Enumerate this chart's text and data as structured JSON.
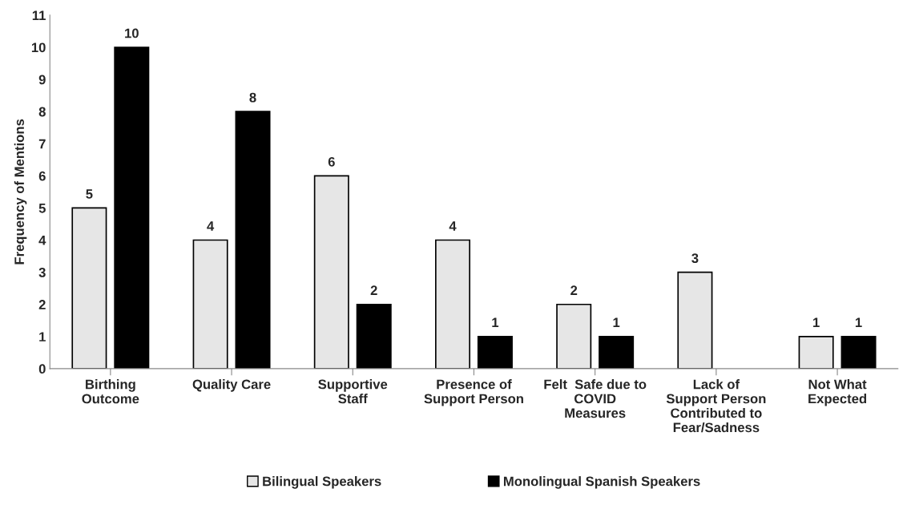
{
  "chart_data": {
    "type": "bar",
    "ylabel": "Frequency of Mentions",
    "categories": [
      "Birthing\nOutcome",
      "Quality Care",
      "Supportive\nStaff",
      "Presence of\nSupport Person",
      "Felt  Safe due to\nCOVID\nMeasures",
      "Lack of\nSupport Person\nContributed to\nFear/Sadness",
      "Not What\nExpected"
    ],
    "series": [
      {
        "name": "Bilingual Speakers",
        "color": "#e6e6e6",
        "values": [
          5,
          4,
          6,
          4,
          2,
          3,
          1
        ]
      },
      {
        "name": "Monolingual Spanish Speakers",
        "color": "#000000",
        "values": [
          10,
          8,
          2,
          1,
          1,
          null,
          1
        ]
      }
    ],
    "ylim": [
      0,
      11
    ],
    "yticks": [
      0,
      1,
      2,
      3,
      4,
      5,
      6,
      7,
      8,
      9,
      10,
      11
    ],
    "data_labels": true,
    "grid": false,
    "legend": "bottom"
  }
}
